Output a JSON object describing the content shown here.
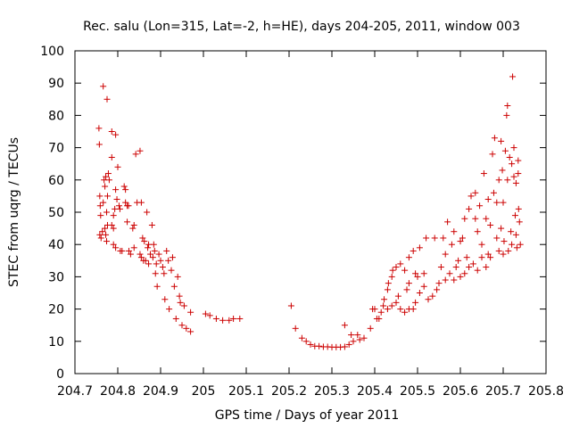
{
  "chart_data": {
    "type": "scatter",
    "title": "Rec. salu (Lon=315, Lat=-2, h=HE), days 204-205, 2011, window 003",
    "xlabel": "GPS time / Days of year 2011",
    "ylabel": "STEC from uqrg / TECUs",
    "xlim": [
      204.7,
      205.8
    ],
    "ylim": [
      0,
      100
    ],
    "x_ticks": [
      204.7,
      204.8,
      204.9,
      205,
      205.1,
      205.2,
      205.3,
      205.4,
      205.5,
      205.6,
      205.7,
      205.8
    ],
    "x_tick_labels": [
      "204.7",
      "204.8",
      "204.9",
      "205",
      "205.1",
      "205.2",
      "205.3",
      "205.4",
      "205.5",
      "205.6",
      "205.7",
      "205.8"
    ],
    "y_ticks": [
      0,
      10,
      20,
      30,
      40,
      50,
      60,
      70,
      80,
      90,
      100
    ],
    "y_tick_labels": [
      "0",
      "10",
      "20",
      "30",
      "40",
      "50",
      "60",
      "70",
      "80",
      "90",
      "100"
    ],
    "marker": "+",
    "color": "#cc0000",
    "grid": false,
    "series": [
      {
        "points": [
          [
            204.756,
            76
          ],
          [
            204.757,
            71
          ],
          [
            204.758,
            55
          ],
          [
            204.759,
            52
          ],
          [
            204.76,
            49
          ],
          [
            204.758,
            43
          ],
          [
            204.761,
            42
          ],
          [
            204.764,
            44
          ],
          [
            204.766,
            53
          ],
          [
            204.768,
            60
          ],
          [
            204.77,
            58
          ],
          [
            204.772,
            61
          ],
          [
            204.77,
            45
          ],
          [
            204.772,
            43
          ],
          [
            204.774,
            41
          ],
          [
            204.776,
            46
          ],
          [
            204.774,
            50
          ],
          [
            204.776,
            55
          ],
          [
            204.778,
            62
          ],
          [
            204.78,
            60
          ],
          [
            204.766,
            89
          ],
          [
            204.775,
            85
          ],
          [
            204.786,
            75
          ],
          [
            204.795,
            74
          ],
          [
            204.786,
            67
          ],
          [
            204.79,
            49
          ],
          [
            204.793,
            51
          ],
          [
            204.786,
            46
          ],
          [
            204.79,
            45
          ],
          [
            204.79,
            40
          ],
          [
            204.795,
            39
          ],
          [
            204.795,
            57
          ],
          [
            204.798,
            54
          ],
          [
            204.8,
            64
          ],
          [
            204.803,
            52
          ],
          [
            204.805,
            51
          ],
          [
            204.806,
            38
          ],
          [
            204.81,
            38
          ],
          [
            204.815,
            58
          ],
          [
            204.818,
            57
          ],
          [
            204.818,
            53
          ],
          [
            204.822,
            52
          ],
          [
            204.825,
            52
          ],
          [
            204.822,
            47
          ],
          [
            204.826,
            38
          ],
          [
            204.83,
            37
          ],
          [
            204.835,
            45
          ],
          [
            204.838,
            46
          ],
          [
            204.838,
            39
          ],
          [
            204.842,
            68
          ],
          [
            204.845,
            53
          ],
          [
            204.852,
            69
          ],
          [
            204.855,
            53
          ],
          [
            204.852,
            37
          ],
          [
            204.855,
            36
          ],
          [
            204.858,
            42
          ],
          [
            204.862,
            41
          ],
          [
            204.86,
            35
          ],
          [
            204.865,
            35
          ],
          [
            204.868,
            50
          ],
          [
            204.87,
            39
          ],
          [
            204.872,
            40
          ],
          [
            204.872,
            34
          ],
          [
            204.876,
            37
          ],
          [
            204.88,
            46
          ],
          [
            204.882,
            36
          ],
          [
            204.884,
            40
          ],
          [
            204.886,
            38
          ],
          [
            204.888,
            31
          ],
          [
            204.89,
            34
          ],
          [
            204.892,
            27
          ],
          [
            204.896,
            37
          ],
          [
            204.9,
            35
          ],
          [
            204.905,
            33
          ],
          [
            204.908,
            31
          ],
          [
            204.91,
            23
          ],
          [
            204.914,
            38
          ],
          [
            204.918,
            35
          ],
          [
            204.92,
            20
          ],
          [
            204.925,
            32
          ],
          [
            204.928,
            36
          ],
          [
            204.932,
            27
          ],
          [
            204.936,
            17
          ],
          [
            204.94,
            30
          ],
          [
            204.944,
            24
          ],
          [
            204.946,
            22
          ],
          [
            204.95,
            15
          ],
          [
            204.955,
            21
          ],
          [
            204.96,
            14
          ],
          [
            204.97,
            13
          ],
          [
            204.97,
            19
          ],
          [
            205.005,
            18.5
          ],
          [
            205.015,
            18
          ],
          [
            205.03,
            17
          ],
          [
            205.045,
            16.5
          ],
          [
            205.06,
            16.5
          ],
          [
            205.07,
            17
          ],
          [
            205.085,
            17
          ],
          [
            205.205,
            21
          ],
          [
            205.215,
            14
          ],
          [
            205.23,
            11
          ],
          [
            205.24,
            10
          ],
          [
            205.25,
            9
          ],
          [
            205.26,
            8.5
          ],
          [
            205.27,
            8.5
          ],
          [
            205.28,
            8.3
          ],
          [
            205.29,
            8.3
          ],
          [
            205.3,
            8.2
          ],
          [
            205.31,
            8.2
          ],
          [
            205.32,
            8.2
          ],
          [
            205.33,
            8.3
          ],
          [
            205.34,
            9
          ],
          [
            205.35,
            10
          ],
          [
            205.33,
            15
          ],
          [
            205.345,
            12
          ],
          [
            205.36,
            12
          ],
          [
            205.365,
            10.5
          ],
          [
            205.375,
            11
          ],
          [
            205.39,
            14
          ],
          [
            205.395,
            20
          ],
          [
            205.4,
            20
          ],
          [
            205.405,
            17
          ],
          [
            205.41,
            17
          ],
          [
            205.415,
            19
          ],
          [
            205.42,
            21
          ],
          [
            205.422,
            23
          ],
          [
            205.43,
            26
          ],
          [
            205.432,
            28
          ],
          [
            205.44,
            30
          ],
          [
            205.442,
            32
          ],
          [
            205.43,
            20
          ],
          [
            205.44,
            21
          ],
          [
            205.45,
            22
          ],
          [
            205.455,
            24
          ],
          [
            205.46,
            20
          ],
          [
            205.47,
            19
          ],
          [
            205.475,
            26
          ],
          [
            205.48,
            28
          ],
          [
            205.48,
            20
          ],
          [
            205.49,
            20
          ],
          [
            205.495,
            22
          ],
          [
            205.505,
            25
          ],
          [
            205.515,
            27
          ],
          [
            205.45,
            33
          ],
          [
            205.46,
            34
          ],
          [
            205.47,
            32
          ],
          [
            205.48,
            36
          ],
          [
            205.49,
            38
          ],
          [
            205.495,
            31
          ],
          [
            205.5,
            30
          ],
          [
            205.505,
            39
          ],
          [
            205.515,
            31
          ],
          [
            205.52,
            42
          ],
          [
            205.525,
            23
          ],
          [
            205.535,
            24
          ],
          [
            205.54,
            42
          ],
          [
            205.545,
            26
          ],
          [
            205.55,
            28
          ],
          [
            205.555,
            33
          ],
          [
            205.56,
            42
          ],
          [
            205.565,
            29
          ],
          [
            205.565,
            37
          ],
          [
            205.57,
            47
          ],
          [
            205.575,
            31
          ],
          [
            205.58,
            40
          ],
          [
            205.585,
            29
          ],
          [
            205.585,
            44
          ],
          [
            205.59,
            33
          ],
          [
            205.595,
            35
          ],
          [
            205.6,
            30
          ],
          [
            205.6,
            41
          ],
          [
            205.605,
            42
          ],
          [
            205.61,
            31
          ],
          [
            205.61,
            48
          ],
          [
            205.615,
            36
          ],
          [
            205.62,
            33
          ],
          [
            205.62,
            51
          ],
          [
            205.625,
            55
          ],
          [
            205.63,
            34
          ],
          [
            205.635,
            48
          ],
          [
            205.635,
            56
          ],
          [
            205.64,
            32
          ],
          [
            205.64,
            44
          ],
          [
            205.645,
            52
          ],
          [
            205.65,
            36
          ],
          [
            205.65,
            40
          ],
          [
            205.655,
            62
          ],
          [
            205.66,
            48
          ],
          [
            205.66,
            33
          ],
          [
            205.665,
            37
          ],
          [
            205.665,
            54
          ],
          [
            205.67,
            46
          ],
          [
            205.67,
            36
          ],
          [
            205.675,
            68
          ],
          [
            205.678,
            56
          ],
          [
            205.68,
            73
          ],
          [
            205.685,
            53
          ],
          [
            205.685,
            42
          ],
          [
            205.69,
            38
          ],
          [
            205.69,
            60
          ],
          [
            205.695,
            45
          ],
          [
            205.695,
            72
          ],
          [
            205.698,
            63
          ],
          [
            205.7,
            37
          ],
          [
            205.7,
            53
          ],
          [
            205.702,
            41
          ],
          [
            205.705,
            69
          ],
          [
            205.708,
            80
          ],
          [
            205.71,
            83
          ],
          [
            205.71,
            60
          ],
          [
            205.712,
            38
          ],
          [
            205.715,
            67
          ],
          [
            205.718,
            44
          ],
          [
            205.72,
            65
          ],
          [
            205.72,
            40
          ],
          [
            205.722,
            92
          ],
          [
            205.725,
            70
          ],
          [
            205.725,
            61
          ],
          [
            205.728,
            49
          ],
          [
            205.73,
            43
          ],
          [
            205.73,
            59
          ],
          [
            205.732,
            39
          ],
          [
            205.735,
            66
          ],
          [
            205.735,
            62
          ],
          [
            205.736,
            51
          ],
          [
            205.738,
            47
          ],
          [
            205.74,
            40
          ]
        ]
      }
    ]
  }
}
